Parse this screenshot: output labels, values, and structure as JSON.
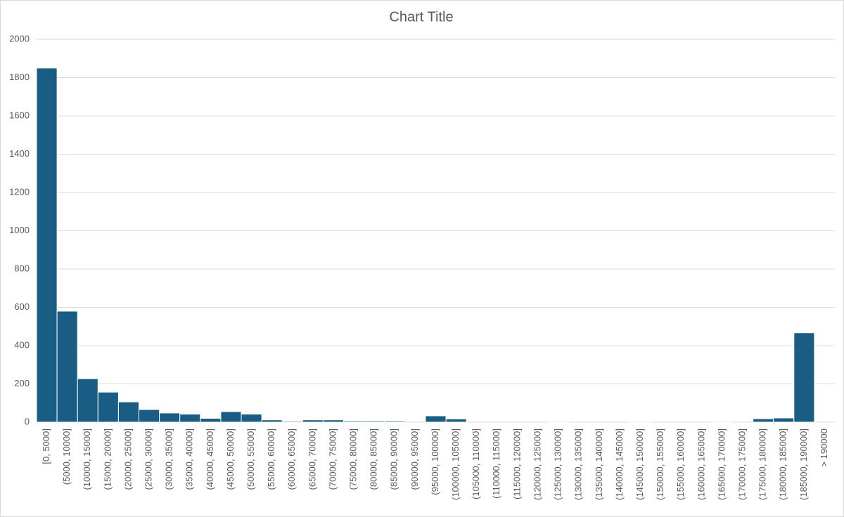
{
  "chart_data": {
    "type": "bar",
    "title": "Chart Title",
    "categories": [
      "[0, 5000]",
      "(5000, 10000]",
      "(10000, 15000]",
      "(15000, 20000]",
      "(20000, 25000]",
      "(25000, 30000]",
      "(30000, 35000]",
      "(35000, 40000]",
      "(40000, 45000]",
      "(45000, 50000]",
      "(50000, 55000]",
      "(55000, 60000]",
      "(60000, 65000]",
      "(65000, 70000]",
      "(70000, 75000]",
      "(75000, 80000]",
      "(80000, 85000]",
      "(85000, 90000]",
      "(90000, 95000]",
      "(95000, 100000]",
      "(100000, 105000]",
      "(105000, 110000]",
      "(110000, 115000]",
      "(115000, 120000]",
      "(120000, 125000]",
      "(125000, 130000]",
      "(130000, 135000]",
      "(135000, 140000]",
      "(140000, 145000]",
      "(145000, 150000]",
      "(150000, 155000]",
      "(155000, 160000]",
      "(160000, 165000]",
      "(165000, 170000]",
      "(170000, 175000]",
      "(175000, 180000]",
      "(180000, 185000]",
      "(185000, 190000]",
      "> 190000"
    ],
    "values": [
      1850,
      580,
      227,
      157,
      106,
      66,
      48,
      42,
      20,
      55,
      42,
      12,
      5,
      12,
      12,
      6,
      6,
      6,
      0,
      33,
      17,
      0,
      0,
      0,
      0,
      4,
      0,
      0,
      0,
      4,
      0,
      0,
      0,
      4,
      0,
      18,
      22,
      467,
      0
    ],
    "color": "#195d84",
    "ylim": [
      0,
      2000
    ],
    "yticks": [
      0,
      200,
      400,
      600,
      800,
      1000,
      1200,
      1400,
      1600,
      1800,
      2000
    ],
    "grid": true
  }
}
